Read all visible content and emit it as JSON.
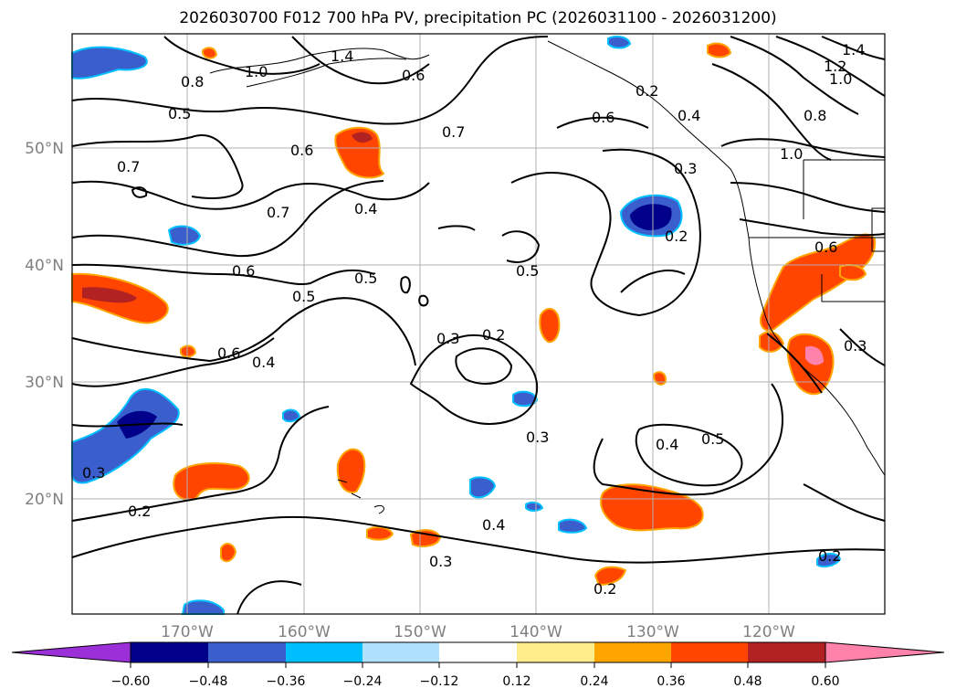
{
  "title": "2026030700 F012 700 hPa PV, precipitation PC (2026031100 - 2026031200)",
  "map": {
    "lat_labels": [
      "50°N",
      "40°N",
      "30°N",
      "20°N"
    ],
    "lon_labels": [
      "170°W",
      "160°W",
      "150°W",
      "140°W",
      "130°W",
      "120°W"
    ],
    "contour_labels": [
      "1.4",
      "1.0",
      "0.8",
      "0.5",
      "0.7",
      "0.6",
      "0.7",
      "0.4",
      "0.6",
      "0.5",
      "0.5",
      "0.3",
      "0.2",
      "0.3",
      "0.2",
      "0.6",
      "0.4",
      "0.3",
      "0.2",
      "0.4",
      "0.5",
      "0.4",
      "0.3",
      "0.2",
      "0.6",
      "0.5",
      "0.6",
      "0.7",
      "1.0",
      "1.2",
      "1.4",
      "0.8",
      "1.0",
      "0.3",
      "0.2",
      "0.6",
      "0.3",
      "0.2",
      "0.4"
    ]
  },
  "colorbar": {
    "colors": [
      "#9b30d9",
      "#00008b",
      "#3a5fcd",
      "#00bfff",
      "#b0e2ff",
      "#ffffff",
      "#ffec8b",
      "#ffa500",
      "#ff4500",
      "#b22222",
      "#ff82ab"
    ],
    "ticks": [
      "−0.60",
      "−0.48",
      "−0.36",
      "−0.24",
      "−0.12",
      "0.12",
      "0.24",
      "0.36",
      "0.48",
      "0.60"
    ]
  }
}
